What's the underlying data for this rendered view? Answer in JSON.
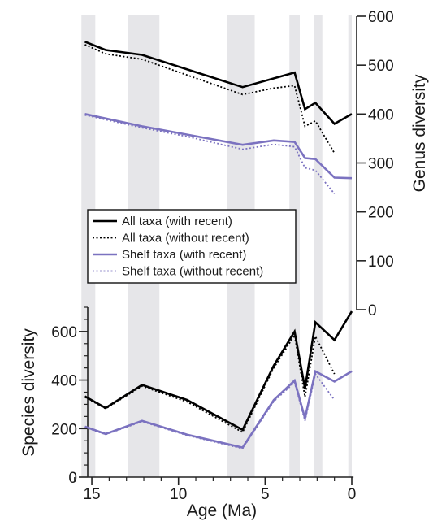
{
  "chart_data": {
    "type": "line",
    "x_axis": {
      "label": "Age (Ma)",
      "range": [
        16.1,
        -0.1
      ],
      "ticks": [
        15,
        10,
        5,
        0
      ],
      "tick_labels": [
        "15",
        "10",
        "5",
        "0"
      ],
      "minor_ticks": [
        16,
        14,
        13,
        12,
        11,
        9,
        8,
        7,
        6,
        4,
        3,
        2,
        1
      ]
    },
    "shaded_intervals": [
      [
        15.6,
        14.8
      ],
      [
        12.9,
        11.1
      ],
      [
        7.2,
        5.6
      ],
      [
        3.6,
        3.0
      ],
      [
        2.2,
        1.7
      ],
      [
        0.2,
        0.0
      ]
    ],
    "panels": [
      {
        "name": "genus",
        "ylabel": "Genus diversity",
        "y_axis_side": "right",
        "ylim": [
          0,
          600
        ],
        "yticks": [
          0,
          100,
          200,
          300,
          400,
          500,
          600
        ],
        "ytick_labels": [
          "0",
          "100",
          "200",
          "300",
          "400",
          "500",
          "600"
        ],
        "series": [
          {
            "name": "All taxa (with recent)",
            "color": "#000000",
            "dashed": false,
            "points": [
              [
                15.4,
                548
              ],
              [
                14.2,
                531
              ],
              [
                12.1,
                521
              ],
              [
                6.3,
                455
              ],
              [
                3.3,
                485
              ],
              [
                2.7,
                410
              ],
              [
                2.1,
                423
              ],
              [
                1.0,
                380
              ],
              [
                0.0,
                400
              ]
            ]
          },
          {
            "name": "All taxa (without recent)",
            "color": "#000000",
            "dashed": true,
            "points": [
              [
                15.4,
                542
              ],
              [
                14.2,
                523
              ],
              [
                12.1,
                512
              ],
              [
                6.3,
                440
              ],
              [
                4.5,
                453
              ],
              [
                3.3,
                458
              ],
              [
                2.7,
                375
              ],
              [
                2.1,
                386
              ],
              [
                1.0,
                320
              ]
            ]
          },
          {
            "name": "Shelf taxa (with recent)",
            "color": "#7b72c0",
            "dashed": false,
            "points": [
              [
                15.4,
                400
              ],
              [
                12.1,
                375
              ],
              [
                9.5,
                358
              ],
              [
                6.3,
                337
              ],
              [
                4.5,
                346
              ],
              [
                3.3,
                343
              ],
              [
                2.7,
                310
              ],
              [
                2.1,
                308
              ],
              [
                1.0,
                270
              ],
              [
                0.0,
                269
              ]
            ]
          },
          {
            "name": "Shelf taxa (without recent)",
            "color": "#7b72c0",
            "dashed": true,
            "points": [
              [
                15.4,
                398
              ],
              [
                12.1,
                372
              ],
              [
                9.5,
                354
              ],
              [
                6.3,
                328
              ],
              [
                4.5,
                338
              ],
              [
                3.3,
                333
              ],
              [
                2.7,
                290
              ],
              [
                2.1,
                285
              ],
              [
                1.0,
                237
              ]
            ]
          }
        ]
      },
      {
        "name": "species",
        "ylabel": "Species diversity",
        "y_axis_side": "left",
        "ylim": [
          0,
          700
        ],
        "yticks": [
          0,
          200,
          400,
          600
        ],
        "ytick_labels": [
          "0",
          "200",
          "400",
          "600"
        ],
        "minor_yticks": [
          50,
          100,
          150,
          250,
          300,
          350,
          450,
          500,
          550,
          650,
          700
        ],
        "series": [
          {
            "name": "All taxa (with recent)",
            "color": "#000000",
            "dashed": false,
            "points": [
              [
                15.4,
                333
              ],
              [
                14.2,
                285
              ],
              [
                12.1,
                380
              ],
              [
                9.5,
                318
              ],
              [
                6.3,
                195
              ],
              [
                4.5,
                460
              ],
              [
                3.3,
                600
              ],
              [
                2.7,
                365
              ],
              [
                2.1,
                638
              ],
              [
                1.0,
                565
              ],
              [
                0.0,
                683
              ]
            ]
          },
          {
            "name": "All taxa (without recent)",
            "color": "#000000",
            "dashed": true,
            "points": [
              [
                15.4,
                330
              ],
              [
                14.2,
                282
              ],
              [
                12.1,
                375
              ],
              [
                9.5,
                310
              ],
              [
                6.3,
                185
              ],
              [
                4.5,
                450
              ],
              [
                3.3,
                585
              ],
              [
                2.7,
                330
              ],
              [
                2.1,
                580
              ],
              [
                1.0,
                425
              ]
            ]
          },
          {
            "name": "Shelf taxa (with recent)",
            "color": "#7b72c0",
            "dashed": false,
            "points": [
              [
                15.4,
                208
              ],
              [
                14.2,
                178
              ],
              [
                12.1,
                232
              ],
              [
                9.5,
                175
              ],
              [
                6.3,
                122
              ],
              [
                4.5,
                318
              ],
              [
                3.3,
                398
              ],
              [
                2.7,
                242
              ],
              [
                2.1,
                436
              ],
              [
                1.0,
                394
              ],
              [
                0.0,
                436
              ]
            ]
          },
          {
            "name": "Shelf taxa (without recent)",
            "color": "#7b72c0",
            "dashed": true,
            "points": [
              [
                15.4,
                206
              ],
              [
                14.2,
                176
              ],
              [
                12.1,
                229
              ],
              [
                9.5,
                172
              ],
              [
                6.3,
                118
              ],
              [
                4.5,
                312
              ],
              [
                3.3,
                390
              ],
              [
                2.7,
                232
              ],
              [
                2.1,
                425
              ],
              [
                1.0,
                318
              ]
            ]
          }
        ]
      }
    ],
    "legend": {
      "placement": "center-left",
      "entries": [
        {
          "label": "All taxa (with recent)",
          "color": "#000000",
          "dashed": false
        },
        {
          "label": "All taxa (without recent)",
          "color": "#000000",
          "dashed": true
        },
        {
          "label": "Shelf taxa (with recent)",
          "color": "#7b72c0",
          "dashed": false
        },
        {
          "label": "Shelf taxa (without recent)",
          "color": "#7b72c0",
          "dashed": true
        }
      ]
    },
    "grid": false
  }
}
